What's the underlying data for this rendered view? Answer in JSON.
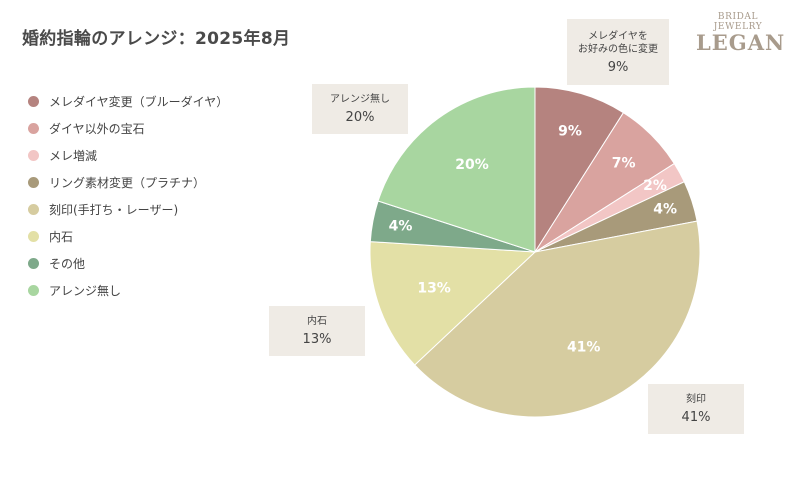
{
  "page": {
    "title": "婚約指輪のアレンジ：2025年8月"
  },
  "brand": {
    "line1": "BRIDAL JEWELRY",
    "line2": "LEGAN",
    "color": "#a89b8c"
  },
  "chart_data": {
    "type": "pie",
    "title": "婚約指輪のアレンジ：2025年8月",
    "legend_position": "left",
    "start_angle_deg": 0,
    "direction": "clockwise",
    "unit": "%",
    "slices": [
      {
        "name": "メレダイヤ変更（ブルーダイヤ）",
        "value": 9,
        "label": "9%",
        "color": "#b5837f"
      },
      {
        "name": "ダイヤ以外の宝石",
        "value": 7,
        "label": "7%",
        "color": "#d9a39f"
      },
      {
        "name": "メレ増減",
        "value": 2,
        "label": "2%",
        "color": "#f2c6c5"
      },
      {
        "name": "リング素材変更（プラチナ）",
        "value": 4,
        "label": "4%",
        "color": "#a89a7a"
      },
      {
        "name": "刻印(手打ち・レーザー)",
        "value": 41,
        "label": "41%",
        "color": "#d6cca0"
      },
      {
        "name": "内石",
        "value": 13,
        "label": "13%",
        "color": "#e3e0a6"
      },
      {
        "name": "その他",
        "value": 4,
        "label": "4%",
        "color": "#7ea98a"
      },
      {
        "name": "アレンジ無し",
        "value": 20,
        "label": "20%",
        "color": "#a8d6a0"
      }
    ],
    "callouts": [
      {
        "key": "mele",
        "name": "メレダイヤを\nお好みの色に変更",
        "value": "9%"
      },
      {
        "key": "none",
        "name": "アレンジ無し",
        "value": "20%"
      },
      {
        "key": "inner",
        "name": "内石",
        "value": "13%"
      },
      {
        "key": "engrave",
        "name": "刻印",
        "value": "41%"
      }
    ]
  }
}
